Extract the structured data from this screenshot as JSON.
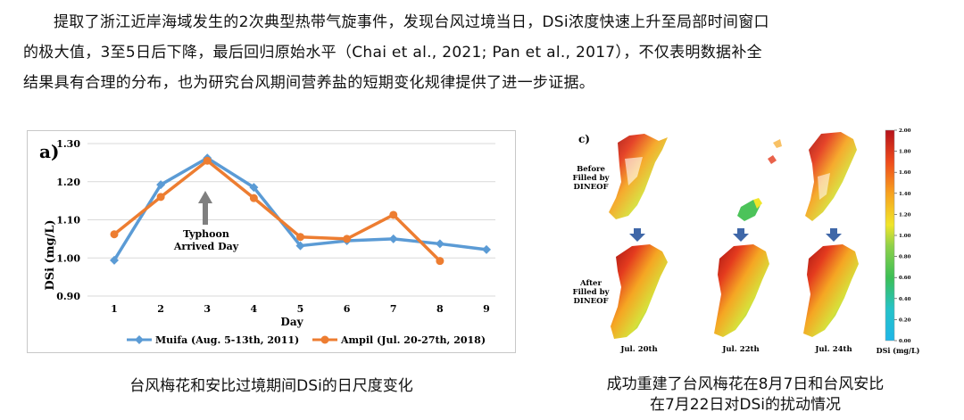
{
  "paragraph": {
    "lines": [
      "提取了浙江近岸海域发生的2次典型热带气旋事件，发现台风过境当日，DSi浓度快速上升至局部时间窗口",
      "的极大值，3至5日后下降，最后回归原始水平（Chai et al., 2021; Pan et al., 2017），不仅表明数据补全",
      "结果具有合理的分布，也为研究台风期间营养盐的短期变化规律提供了进一步证据。"
    ]
  },
  "figure_a": {
    "panel_label": "a)",
    "annotation_line1": "Typhoon",
    "annotation_line2": "Arrived Day",
    "caption": "台风梅花和安比过境期间DSi的日尺度变化"
  },
  "chart_data": {
    "type": "line",
    "x": [
      1,
      2,
      3,
      4,
      5,
      6,
      7,
      8,
      9
    ],
    "xlabel": "Day",
    "ylabel": "DSi (mg/L)",
    "ylim": [
      0.9,
      1.3
    ],
    "yticks": [
      "0.90",
      "1.00",
      "1.10",
      "1.20",
      "1.30"
    ],
    "xticks": [
      "1",
      "2",
      "3",
      "4",
      "5",
      "6",
      "7",
      "8",
      "9"
    ],
    "grid": true,
    "legend_position": "bottom",
    "series": [
      {
        "name": "Muifa (Aug. 5-13th, 2011)",
        "color": "#5B9BD5",
        "values": [
          0.994,
          1.192,
          1.262,
          1.185,
          1.032,
          1.045,
          1.05,
          1.037,
          1.022
        ]
      },
      {
        "name": "Ampil (Jul. 20-27th, 2018)",
        "color": "#ED7D31",
        "values": [
          1.062,
          1.16,
          1.255,
          1.157,
          1.055,
          1.05,
          1.113,
          0.992,
          null
        ]
      }
    ]
  },
  "figure_c": {
    "panel_label": "c)",
    "row_label_top": [
      "Before",
      "Filled by",
      "DINEOF"
    ],
    "row_label_bottom": [
      "After",
      "Filled by",
      "DINEOF"
    ],
    "dates": [
      "Jul. 20th",
      "Jul. 22th",
      "Jul. 24th"
    ],
    "colorbar_ticks": [
      "2.00",
      "1.80",
      "1.60",
      "1.40",
      "1.20",
      "1.00",
      "0.80",
      "0.60",
      "0.40",
      "0.20",
      "0.00"
    ],
    "colorbar_label": "DSi (mg/L)",
    "caption_line1": "成功重建了台风梅花在8月7日和台风安比",
    "caption_line2": "在7月22日对DSi的扰动情况"
  }
}
